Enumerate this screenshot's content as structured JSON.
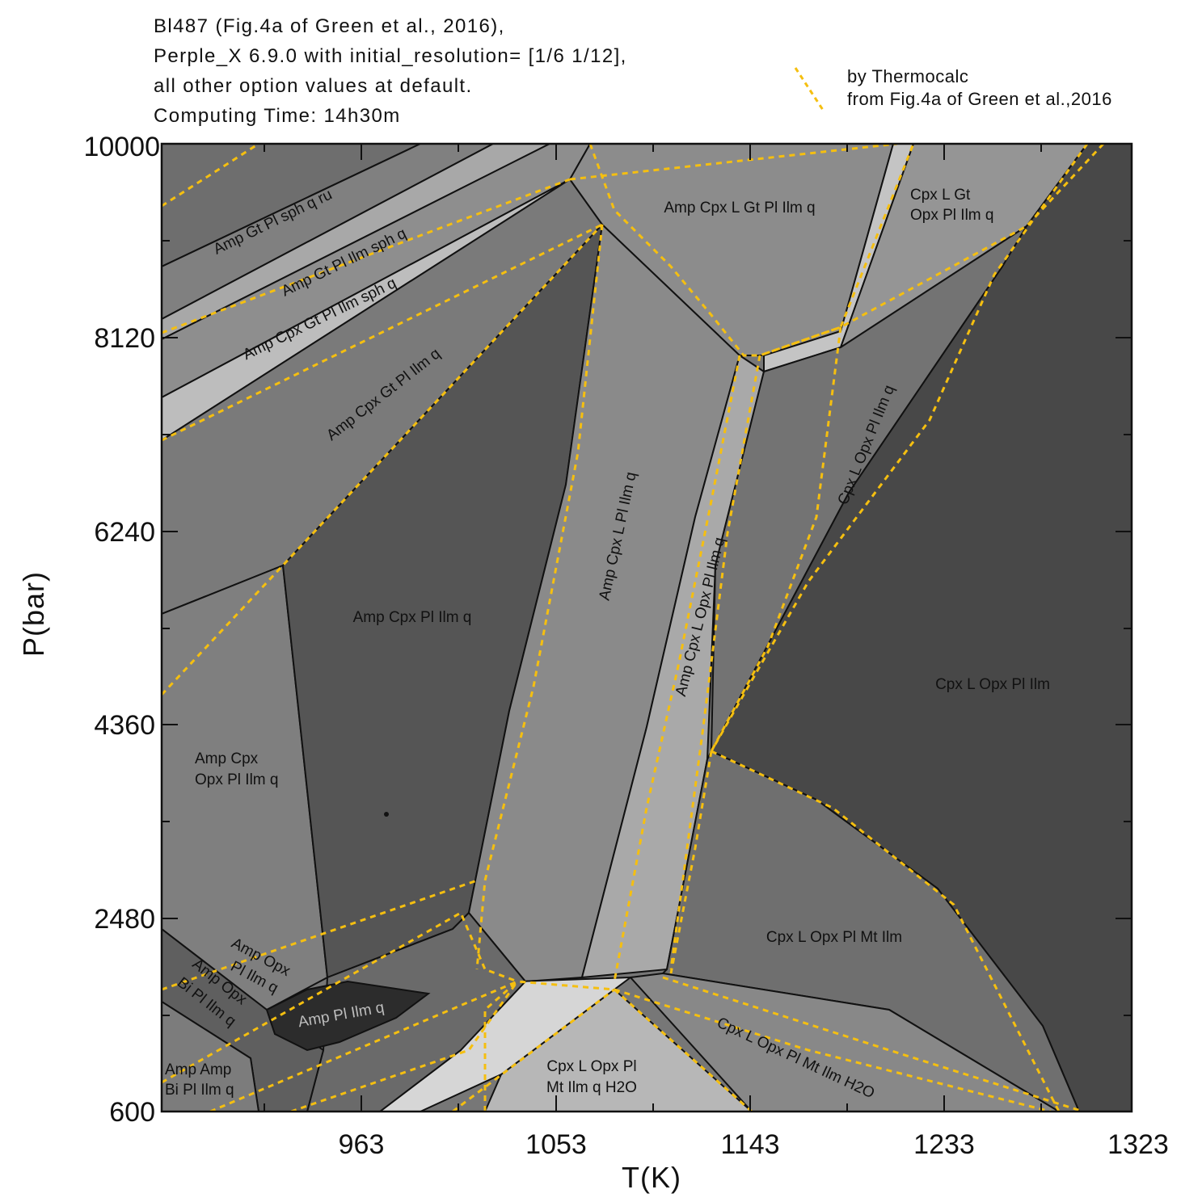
{
  "header": {
    "line1": "Bl487   (Fig.4a of Green et al., 2016),",
    "line2": "Perple_X 6.9.0  with initial_resolution= [1/6 1/12],",
    "line3": "all other option values at default.",
    "line4": "Computing Time: 14h30m"
  },
  "legend": {
    "line1": "by Thermocalc",
    "line2": "from Fig.4a of Green et al.,2016",
    "line_color": "#f5bf10"
  },
  "axes": {
    "xlabel": "T(K)",
    "ylabel": "P(bar)",
    "x_ticks": [
      "963",
      "1053",
      "1143",
      "1233",
      "1323"
    ],
    "y_ticks": [
      "600",
      "2480",
      "4360",
      "6240",
      "8120",
      "10000"
    ]
  },
  "fields": [
    {
      "label": "Amp Gt Pl sph q ru"
    },
    {
      "label": "Amp Gt Pl Ilm sph q"
    },
    {
      "label": "Amp Cpx Gt Pl Ilm sph q"
    },
    {
      "label": "Amp Cpx Gt Pl Ilm q"
    },
    {
      "label": "Amp Cpx L Gt Pl Ilm q"
    },
    {
      "label": "Cpx L Gt"
    },
    {
      "label": "Opx Pl Ilm q"
    },
    {
      "label": "Cpx L Opx Pl Ilm q"
    },
    {
      "label": "Amp Cpx L Pl Ilm q"
    },
    {
      "label": "Amp Cpx L Opx Pl Ilm q"
    },
    {
      "label": "Amp Cpx Pl Ilm q"
    },
    {
      "label": "Cpx L Opx Pl Ilm"
    },
    {
      "label": "Amp Cpx"
    },
    {
      "label": "Opx Pl Ilm q"
    },
    {
      "label": "Cpx L Opx Pl Mt Ilm"
    },
    {
      "label": "Amp Opx"
    },
    {
      "label": "Pl Ilm q"
    },
    {
      "label": "Amp Opx"
    },
    {
      "label": "Bi Pl Ilm q"
    },
    {
      "label": "Amp Pl Ilm q"
    },
    {
      "label": "Cpx L Opx Pl"
    },
    {
      "label": "Mt Ilm q H2O"
    },
    {
      "label": "Cpx L Opx Pl Mt Ilm H2O"
    },
    {
      "label": "Amp Amp"
    },
    {
      "label": "Bi Pl Ilm q"
    }
  ]
}
